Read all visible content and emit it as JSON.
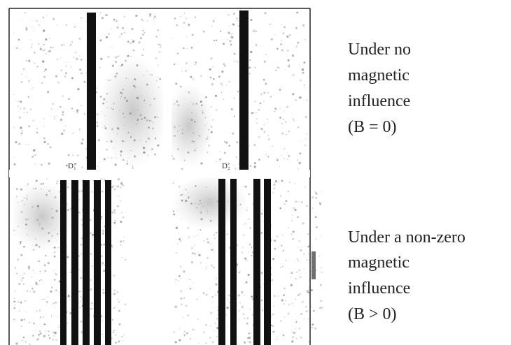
{
  "figure": {
    "detector_labels": [
      "D₁",
      "D₂"
    ],
    "captions": [
      {
        "lines": [
          "Under no",
          "magnetic",
          "influence",
          "(B = 0)"
        ]
      },
      {
        "lines": [
          "Under a non-zero",
          "magnetic",
          "influence",
          "(B > 0)"
        ]
      }
    ]
  }
}
